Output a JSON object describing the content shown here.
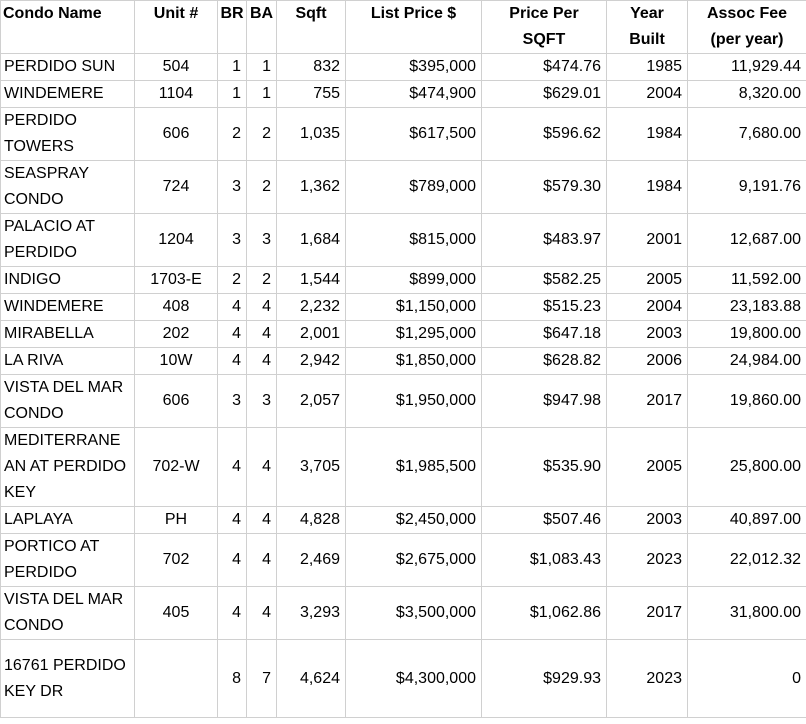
{
  "table": {
    "title": "condo-listings",
    "columns": [
      {
        "key": "name",
        "label": "Condo Name",
        "align": "left",
        "header_align": "left"
      },
      {
        "key": "unit",
        "label": "Unit #",
        "align": "center",
        "header_align": "center"
      },
      {
        "key": "br",
        "label": "BR",
        "align": "right",
        "header_align": "center"
      },
      {
        "key": "ba",
        "label": "BA",
        "align": "right",
        "header_align": "center"
      },
      {
        "key": "sqft",
        "label": "Sqft",
        "align": "right",
        "header_align": "center"
      },
      {
        "key": "list-price",
        "label": "List Price $",
        "align": "right",
        "header_align": "center"
      },
      {
        "key": "price-per-sqft",
        "label": "Price Per\nSQFT",
        "align": "right",
        "header_align": "center"
      },
      {
        "key": "year-built",
        "label": "Year\nBuilt",
        "align": "right",
        "header_align": "center"
      },
      {
        "key": "assoc-fee",
        "label": "Assoc Fee\n(per year)",
        "align": "right",
        "header_align": "center"
      }
    ],
    "rows": [
      [
        "PERDIDO SUN",
        "504",
        "1",
        "1",
        "832",
        "$395,000",
        "$474.76",
        "1985",
        "11,929.44"
      ],
      [
        "WINDEMERE",
        "1104",
        "1",
        "1",
        "755",
        "$474,900",
        "$629.01",
        "2004",
        "8,320.00"
      ],
      [
        "PERDIDO TOWERS",
        "606",
        "2",
        "2",
        "1,035",
        "$617,500",
        "$596.62",
        "1984",
        "7,680.00"
      ],
      [
        "SEASPRAY CONDO",
        "724",
        "3",
        "2",
        "1,362",
        "$789,000",
        "$579.30",
        "1984",
        "9,191.76"
      ],
      [
        "PALACIO AT PERDIDO",
        "1204",
        "3",
        "3",
        "1,684",
        "$815,000",
        "$483.97",
        "2001",
        "12,687.00"
      ],
      [
        "INDIGO",
        "1703-E",
        "2",
        "2",
        "1,544",
        "$899,000",
        "$582.25",
        "2005",
        "11,592.00"
      ],
      [
        "WINDEMERE",
        "408",
        "4",
        "4",
        "2,232",
        "$1,150,000",
        "$515.23",
        "2004",
        "23,183.88"
      ],
      [
        "MIRABELLA",
        "202",
        "4",
        "4",
        "2,001",
        "$1,295,000",
        "$647.18",
        "2003",
        "19,800.00"
      ],
      [
        "LA RIVA",
        "10W",
        "4",
        "4",
        "2,942",
        "$1,850,000",
        "$628.82",
        "2006",
        "24,984.00"
      ],
      [
        "VISTA DEL MAR CONDO",
        "606",
        "3",
        "3",
        "2,057",
        "$1,950,000",
        "$947.98",
        "2017",
        "19,860.00"
      ],
      [
        "MEDITERRANEAN AT PERDIDO KEY",
        "702-W",
        "4",
        "4",
        "3,705",
        "$1,985,500",
        "$535.90",
        "2005",
        "25,800.00"
      ],
      [
        "LAPLAYA",
        "PH",
        "4",
        "4",
        "4,828",
        "$2,450,000",
        "$507.46",
        "2003",
        "40,897.00"
      ],
      [
        "PORTICO AT PERDIDO",
        "702",
        "4",
        "4",
        "2,469",
        "$2,675,000",
        "$1,083.43",
        "2023",
        "22,012.32"
      ],
      [
        "VISTA DEL MAR CONDO",
        "405",
        "4",
        "4",
        "3,293",
        "$3,500,000",
        "$1,062.86",
        "2017",
        "31,800.00"
      ],
      [
        "16761 PERDIDO KEY DR",
        "",
        "8",
        "7",
        "4,624",
        "$4,300,000",
        "$929.93",
        "2023",
        "0"
      ]
    ],
    "colors": {
      "gridline": "#d0d0d0",
      "text": "#000000",
      "background": "#ffffff"
    }
  }
}
